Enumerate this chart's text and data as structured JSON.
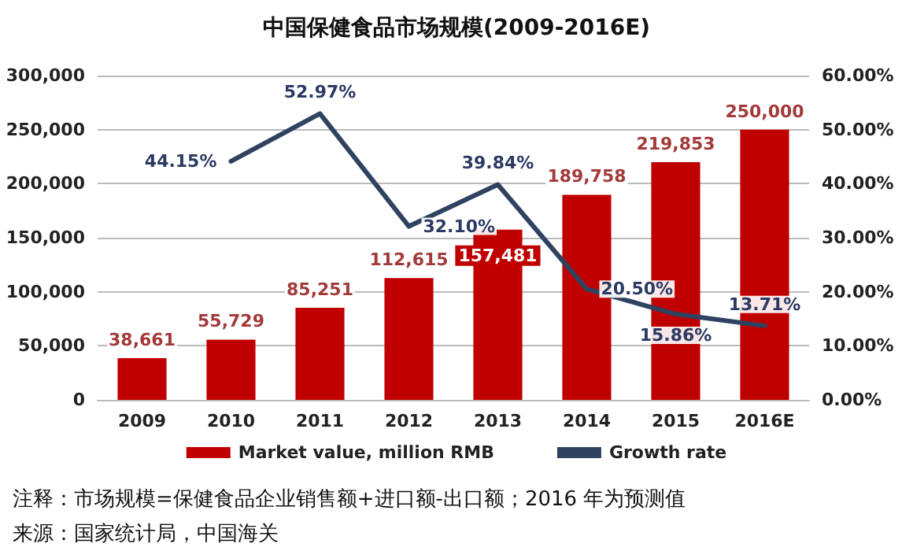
{
  "chart_data": {
    "type": "bar",
    "title": "中国保健食品市场规模(2009-2016E)",
    "categories": [
      "2009",
      "2010",
      "2011",
      "2012",
      "2013",
      "2014",
      "2015",
      "2016E"
    ],
    "series": [
      {
        "name": "Market value, million RMB",
        "type": "bar",
        "color": "#c00000",
        "values": [
          38661,
          55729,
          85251,
          112615,
          157481,
          189758,
          219853,
          250000
        ],
        "value_labels": [
          "38,661",
          "55,729",
          "85,251",
          "112,615",
          "157,481",
          "189,758",
          "219,853",
          "250,000"
        ]
      },
      {
        "name": "Growth rate",
        "type": "line",
        "axis": "y2",
        "color": "#2f4260",
        "values": [
          null,
          44.15,
          52.97,
          32.1,
          39.84,
          20.5,
          15.86,
          13.71
        ],
        "value_labels": [
          null,
          "44.15%",
          "52.97%",
          "32.10%",
          "39.84%",
          "20.50%",
          "15.86%",
          "13.71%"
        ]
      }
    ],
    "ylim": [
      0,
      300000
    ],
    "yticks": [
      {
        "value": 0,
        "label": "0"
      },
      {
        "value": 50000,
        "label": "50,000"
      },
      {
        "value": 100000,
        "label": "100,000"
      },
      {
        "value": 150000,
        "label": "150,000"
      },
      {
        "value": 200000,
        "label": "200,000"
      },
      {
        "value": 250000,
        "label": "250,000"
      },
      {
        "value": 300000,
        "label": "300,000"
      }
    ],
    "y2lim": [
      0,
      60
    ],
    "y2ticks": [
      {
        "value": 0,
        "label": "0.00%"
      },
      {
        "value": 10,
        "label": "10.00%"
      },
      {
        "value": 20,
        "label": "20.00%"
      },
      {
        "value": 30,
        "label": "30.00%"
      },
      {
        "value": 40,
        "label": "40.00%"
      },
      {
        "value": 50,
        "label": "50.00%"
      },
      {
        "value": 60,
        "label": "60.00%"
      }
    ],
    "grid": "y",
    "legend": "bottom",
    "marker": "none",
    "line_style": "solid",
    "annotations": [
      "注释：市场规模=保健食品企业销售额+进口额-出口额；2016 年为预测值",
      "来源：国家统计局，中国海关"
    ]
  }
}
